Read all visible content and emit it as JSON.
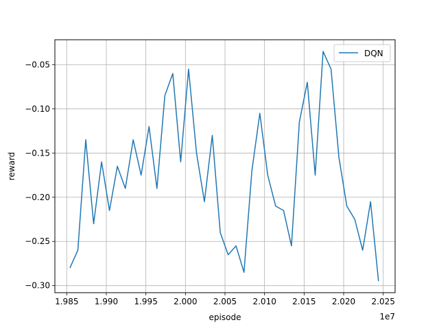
{
  "chart_data": {
    "type": "line",
    "title": "",
    "xlabel": "episode",
    "ylabel": "reward",
    "x_offset_label": "1e7",
    "xlim": [
      1.9835,
      2.0265
    ],
    "ylim": [
      -0.308,
      -0.0218
    ],
    "xticks": [
      1.985,
      1.99,
      1.995,
      2.0,
      2.005,
      2.01,
      2.015,
      2.02,
      2.025
    ],
    "xtick_labels": [
      "1.985",
      "1.990",
      "1.995",
      "2.000",
      "2.005",
      "2.010",
      "2.015",
      "2.020",
      "2.025"
    ],
    "yticks": [
      -0.3,
      -0.25,
      -0.2,
      -0.15,
      -0.1,
      -0.05
    ],
    "ytick_labels": [
      "−0.30",
      "−0.25",
      "−0.20",
      "−0.15",
      "−0.10",
      "−0.05"
    ],
    "grid": true,
    "legend": "upper right",
    "series": [
      {
        "name": "DQN",
        "color": "#1f77b4",
        "x": [
          1.9854,
          1.9864,
          1.9874,
          1.9884,
          1.9894,
          1.9904,
          1.9914,
          1.9924,
          1.9934,
          1.9944,
          1.9954,
          1.9964,
          1.9974,
          1.9984,
          1.9994,
          2.0004,
          2.0014,
          2.0024,
          2.0034,
          2.0044,
          2.0054,
          2.0064,
          2.0074,
          2.0084,
          2.0094,
          2.0104,
          2.0114,
          2.0124,
          2.0134,
          2.0144,
          2.0154,
          2.0164,
          2.0174,
          2.0184,
          2.0194,
          2.0204,
          2.0214,
          2.0224,
          2.0234,
          2.0244
        ],
        "y": [
          -0.28,
          -0.26,
          -0.135,
          -0.23,
          -0.16,
          -0.215,
          -0.165,
          -0.19,
          -0.135,
          -0.175,
          -0.12,
          -0.19,
          -0.085,
          -0.06,
          -0.16,
          -0.055,
          -0.15,
          -0.205,
          -0.13,
          -0.24,
          -0.265,
          -0.255,
          -0.285,
          -0.17,
          -0.105,
          -0.175,
          -0.21,
          -0.215,
          -0.255,
          -0.115,
          -0.07,
          -0.175,
          -0.035,
          -0.055,
          -0.155,
          -0.21,
          -0.225,
          -0.26,
          -0.205,
          -0.295
        ]
      }
    ]
  }
}
